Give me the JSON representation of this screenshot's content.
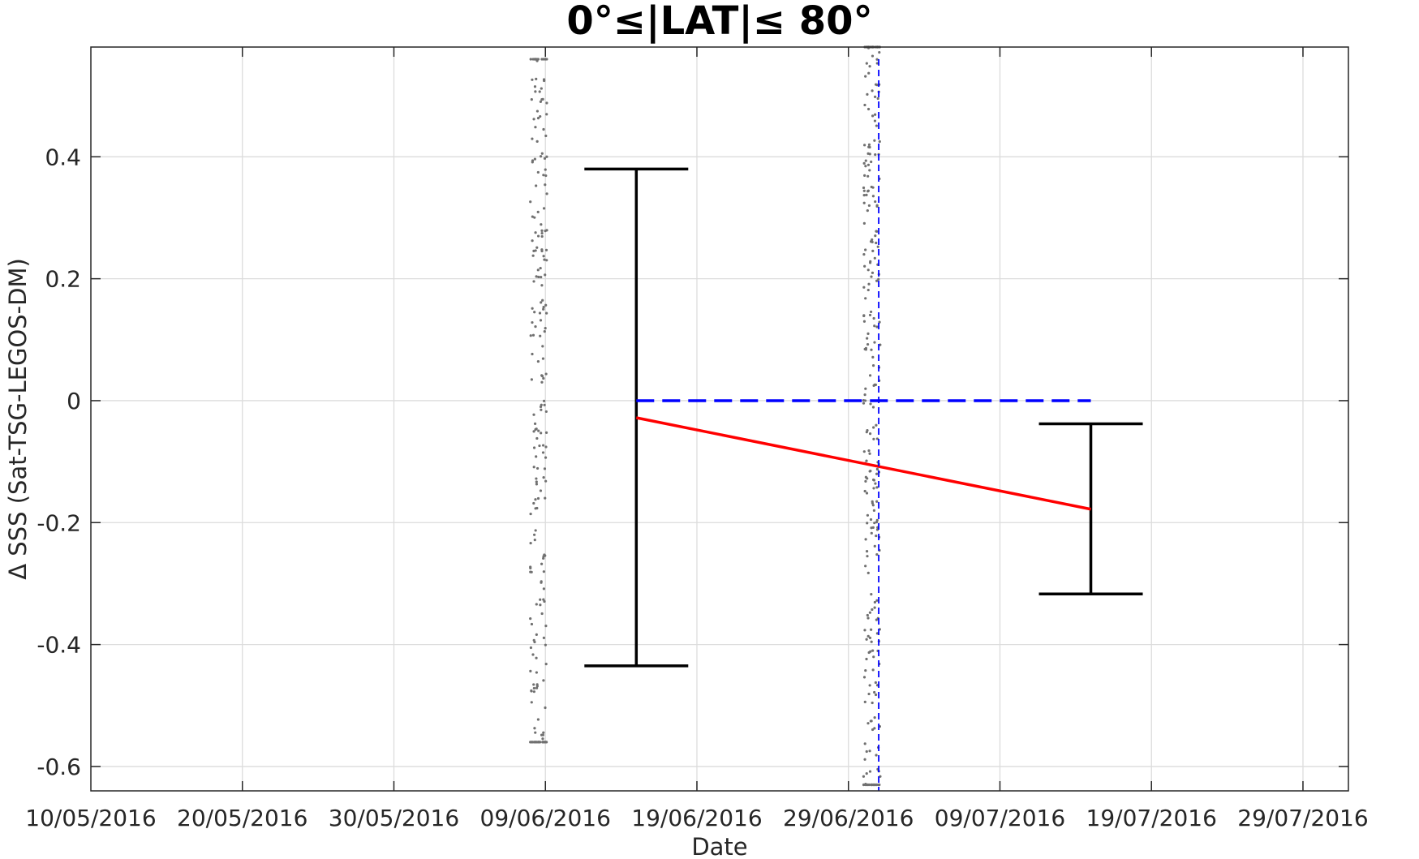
{
  "chart_data": {
    "type": "scatter",
    "title": "0°≤|LAT|≤ 80°",
    "xlabel": "Date",
    "ylabel": "Δ SSS (Sat-TSG-LEGOS-DM)",
    "xlim": [
      "2016-05-10",
      "2016-08-01"
    ],
    "ylim": [
      -0.64,
      0.58
    ],
    "grid": true,
    "x_tick_labels": [
      "10/05/2016",
      "20/05/2016",
      "30/05/2016",
      "09/06/2016",
      "19/06/2016",
      "29/06/2016",
      "09/07/2016",
      "19/07/2016",
      "29/07/2016"
    ],
    "y_tick_labels": [
      "0.4",
      "0.2",
      "0",
      "-0.2",
      "-0.4",
      "-0.6"
    ],
    "series": [
      {
        "type": "errorbar",
        "color": "#000000",
        "points": [
          {
            "x": "2016-06-15",
            "y_low": -0.435,
            "y_high": 0.38
          },
          {
            "x": "2016-07-15",
            "y_low": -0.317,
            "y_high": -0.038
          }
        ]
      },
      {
        "type": "line",
        "color": "#ff0000",
        "points": [
          {
            "x": "2016-06-15",
            "y": -0.028
          },
          {
            "x": "2016-07-15",
            "y": -0.178
          }
        ]
      },
      {
        "type": "line",
        "style": "dashed",
        "color": "#0000ff",
        "points": [
          {
            "x": "2016-06-15",
            "y": 0.0
          },
          {
            "x": "2016-07-15",
            "y": 0.0
          }
        ]
      },
      {
        "type": "vline",
        "style": "dashed",
        "color": "#0000ff",
        "x": "2016-07-01",
        "y_range": [
          -0.64,
          0.56
        ]
      },
      {
        "type": "scatter",
        "color": "#707070",
        "clusters": [
          {
            "x_start": "2016-06-08",
            "x_end": "2016-06-09",
            "y_min": -0.56,
            "y_max": 0.56,
            "count": 230
          },
          {
            "x_start": "2016-06-30",
            "x_end": "2016-07-01",
            "y_min": -0.63,
            "y_max": 0.58,
            "count": 280
          }
        ]
      }
    ]
  }
}
